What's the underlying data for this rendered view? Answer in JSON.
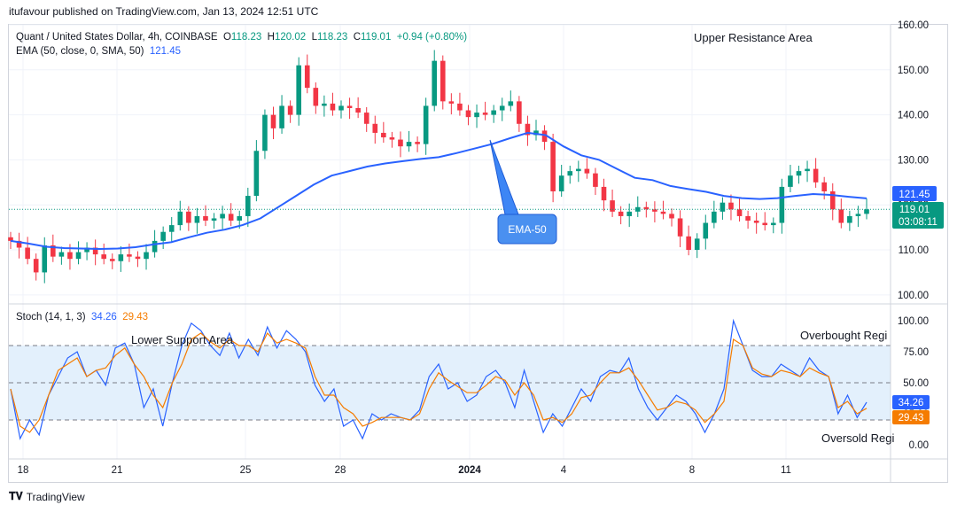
{
  "header": {
    "published": "itufavour published on TradingView.com, Jan 13, 2024 12:51 UTC"
  },
  "legend": {
    "symbol": "Quant / United States Dollar, 4h, COINBASE",
    "o_label": "O",
    "o_value": "118.23",
    "h_label": "H",
    "h_value": "120.02",
    "l_label": "L",
    "l_value": "118.23",
    "c_label": "C",
    "c_value": "119.01",
    "change": "+0.94 (+0.80%)",
    "ema_label": "EMA (50, close, 0, SMA, 50)",
    "ema_value": "121.45",
    "stoch_label": "Stoch (14, 1, 3)",
    "stoch_k": "34.26",
    "stoch_d": "29.43"
  },
  "annotations": {
    "upper": "Upper Resistance Area",
    "ema": "EMA-50",
    "lower": "Lower Support Area",
    "overbought": "Overbought Regi",
    "oversold": "Oversold Regi"
  },
  "price_tags": {
    "ema": "121.45",
    "close": "119.01",
    "countdown": "03:08:11",
    "k": "34.26",
    "d": "29.43"
  },
  "footer": {
    "brand": "TradingView"
  },
  "colors": {
    "up": "#089981",
    "down": "#f23645",
    "ema": "#2962ff",
    "k": "#2962ff",
    "d": "#f57c00",
    "band": "#e3f0fc"
  },
  "chart_data": [
    {
      "type": "candlestick",
      "title": "Quant / United States Dollar, 4h, COINBASE",
      "ylim": [
        98,
        160
      ],
      "y_ticks": [
        "100.00",
        "110.00",
        "120.00",
        "130.00",
        "140.00",
        "150.00",
        "160.00"
      ],
      "x_ticks": [
        "18",
        "21",
        "25",
        "28",
        "2024",
        "4",
        "8",
        "11"
      ],
      "close_path": [
        112,
        110.5,
        108,
        105,
        111,
        108.5,
        109.5,
        108,
        109.5,
        110.5,
        109,
        108,
        107.5,
        109,
        108.5,
        108,
        109.5,
        112,
        114,
        115.5,
        118.5,
        116,
        117.5,
        116.5,
        117,
        118,
        116.5,
        117.5,
        122,
        132,
        140,
        137,
        142,
        140,
        151,
        146,
        142,
        142.5,
        141,
        142,
        141.5,
        140.5,
        138,
        136,
        135,
        134.5,
        133,
        134,
        133.5,
        142,
        152,
        143,
        142.5,
        141,
        139.5,
        140.5,
        140,
        141,
        142,
        143,
        138,
        135.5,
        136.5,
        134,
        123,
        126.5,
        127.5,
        128,
        127,
        124,
        121,
        118.5,
        117.5,
        118.5,
        119.5,
        119,
        118.5,
        118,
        117,
        113,
        110,
        112.5,
        116,
        118.5,
        120.5,
        119,
        117.5,
        116.5,
        116,
        115.5,
        116,
        124,
        126.5,
        127.5,
        128,
        125,
        123,
        119,
        116,
        117.5,
        118,
        119.01
      ],
      "ema_path": [
        112,
        111.4,
        110.7,
        110.4,
        110.3,
        110.2,
        110.3,
        110.6,
        111.2,
        111.7,
        112.8,
        113.8,
        114.5,
        115.5,
        117,
        119.5,
        122,
        124.5,
        126.5,
        127.5,
        128.5,
        129.2,
        129.7,
        130.2,
        130.6,
        131.5,
        132.5,
        133.5,
        134.8,
        136,
        135.5,
        133,
        131,
        130,
        128,
        126,
        125.5,
        124.2,
        123.5,
        122.9,
        122,
        121.5,
        121.3,
        121.5,
        122,
        122.4,
        122.2,
        121.8,
        121.45
      ]
    },
    {
      "type": "line",
      "title": "Stoch (14, 1, 3)",
      "ylim": [
        0,
        100
      ],
      "y_ticks": [
        "0.00",
        "25.00",
        "50.00",
        "75.00",
        "100.00"
      ],
      "bands": {
        "upper": 80,
        "middle": 50,
        "lower": 20
      },
      "series": [
        {
          "name": "%K",
          "values": [
            45,
            5,
            20,
            8,
            40,
            55,
            70,
            75,
            55,
            60,
            48,
            78,
            82,
            65,
            30,
            45,
            15,
            50,
            80,
            98,
            92,
            80,
            72,
            90,
            70,
            85,
            72,
            95,
            78,
            92,
            85,
            75,
            48,
            35,
            45,
            15,
            20,
            5,
            25,
            20,
            25,
            22,
            20,
            28,
            55,
            65,
            45,
            50,
            35,
            40,
            55,
            60,
            50,
            30,
            60,
            35,
            10,
            25,
            15,
            30,
            45,
            35,
            55,
            60,
            58,
            70,
            45,
            30,
            20,
            30,
            40,
            35,
            25,
            10,
            25,
            45,
            100,
            80,
            60,
            55,
            55,
            65,
            60,
            55,
            70,
            60,
            55,
            25,
            40,
            22,
            34.26
          ]
        },
        {
          "name": "%D",
          "values": [
            45,
            15,
            10,
            20,
            40,
            60,
            65,
            70,
            55,
            60,
            62,
            72,
            78,
            65,
            55,
            40,
            30,
            50,
            65,
            85,
            90,
            83,
            78,
            85,
            80,
            80,
            75,
            90,
            82,
            85,
            82,
            78,
            55,
            40,
            40,
            30,
            25,
            15,
            18,
            22,
            22,
            22,
            20,
            25,
            45,
            58,
            52,
            47,
            42,
            42,
            48,
            55,
            52,
            40,
            50,
            40,
            20,
            22,
            18,
            25,
            38,
            40,
            50,
            58,
            58,
            62,
            52,
            40,
            28,
            30,
            35,
            33,
            28,
            18,
            25,
            35,
            85,
            80,
            62,
            57,
            55,
            60,
            58,
            55,
            62,
            58,
            55,
            30,
            35,
            25,
            29.43
          ]
        }
      ]
    }
  ]
}
